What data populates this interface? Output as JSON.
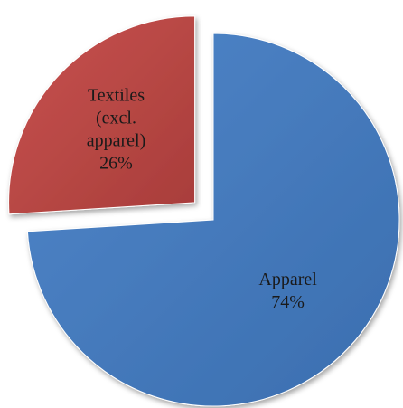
{
  "chart_data": {
    "type": "pie",
    "title": "",
    "slices": [
      {
        "label_lines": [
          "Apparel"
        ],
        "value": 74,
        "value_label": "74%",
        "color": "#4a7ebf",
        "exploded": false
      },
      {
        "label_lines": [
          "Textiles",
          "(excl.",
          "apparel)"
        ],
        "value": 26,
        "value_label": "26%",
        "color": "#be4b48",
        "exploded": true
      }
    ],
    "start_angle_deg": 0,
    "direction": "clockwise",
    "label_color": "#1a1a1a",
    "legend": "none"
  }
}
